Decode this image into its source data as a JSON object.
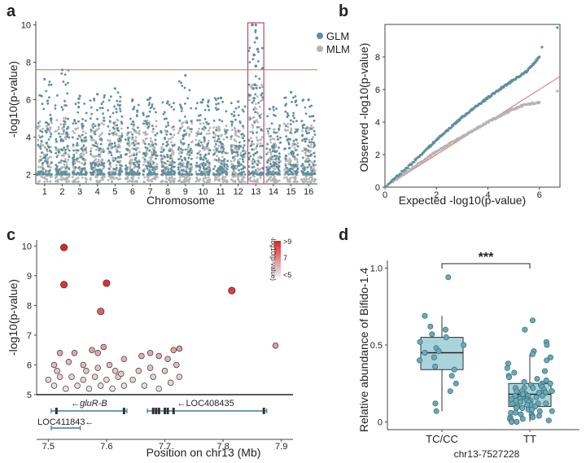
{
  "colors": {
    "glm": "#5f8f9d",
    "mlm": "#b5b5b5",
    "threshold": "#e06a6a",
    "highlight": "#c0446a",
    "box": "#8ec6d0",
    "gene": "#3d7f8f"
  },
  "panel_labels": {
    "a": "a",
    "b": "b",
    "c": "c",
    "d": "d"
  },
  "chart_data": [
    {
      "type": "scatter",
      "id": "a",
      "xlabel": "Chromosome",
      "ylabel": "-log10(p-value)",
      "categories": [
        "1",
        "2",
        "3",
        "4",
        "5",
        "6",
        "7",
        "8",
        "9",
        "10",
        "11",
        "12",
        "13",
        "14",
        "15",
        "16"
      ],
      "ylim": [
        1.5,
        10.2
      ],
      "yticks": [
        2,
        4,
        6,
        8,
        10
      ],
      "threshold": 7.6,
      "highlight_chromosome": "13",
      "legend": {
        "position": "top-right",
        "entries": [
          "GLM",
          "MLM"
        ]
      },
      "series": [
        {
          "name": "GLM",
          "peak_values": [
            7.1,
            7.6,
            6.2,
            6.3,
            6.6,
            6.0,
            6.1,
            5.9,
            7.3,
            6.0,
            6.1,
            5.9,
            10.0,
            5.6,
            6.4,
            6.0
          ]
        },
        {
          "name": "MLM",
          "peak_values": [
            5.0,
            5.2,
            4.6,
            4.8,
            5.0,
            4.7,
            4.9,
            4.6,
            5.0,
            4.8,
            4.7,
            4.6,
            6.8,
            4.6,
            4.8,
            4.7
          ]
        }
      ]
    },
    {
      "type": "scatter",
      "id": "b",
      "xlabel": "Expected -log10(p-value)",
      "ylabel": "Observed -log10(p-value)",
      "xlim": [
        0,
        6.8
      ],
      "ylim": [
        0,
        10
      ],
      "xticks": [
        0,
        2,
        4,
        6
      ],
      "yticks": [
        0,
        2,
        4,
        6,
        8
      ],
      "series": [
        {
          "name": "GLM",
          "x": [
            0,
            1,
            2,
            3,
            4,
            5,
            5.5,
            6.0,
            6.1,
            6.7
          ],
          "y": [
            0,
            1.4,
            2.9,
            4.3,
            5.5,
            6.6,
            7.1,
            8.0,
            8.6,
            9.8
          ]
        },
        {
          "name": "MLM",
          "x": [
            0,
            1,
            2,
            3,
            4,
            5,
            5.5,
            6.0,
            6.7
          ],
          "y": [
            0,
            1.1,
            2.2,
            3.1,
            4.0,
            4.8,
            5.1,
            5.2,
            5.9
          ]
        }
      ]
    },
    {
      "type": "scatter",
      "id": "c",
      "xlabel": "Position on chr13 (Mb)",
      "ylabel": "-log10(p-value)",
      "xlim": [
        7.48,
        7.92
      ],
      "ylim": [
        5,
        10.2
      ],
      "xticks": [
        7.5,
        7.6,
        7.7,
        7.8,
        7.9
      ],
      "yticks": [
        5,
        6,
        7,
        8,
        9,
        10
      ],
      "colorbar": {
        "title": "-log10(p-value)",
        "labels": [
          ">9",
          "7",
          "<5"
        ]
      },
      "points": [
        {
          "x": 7.527,
          "y": 9.95
        },
        {
          "x": 7.527,
          "y": 8.7
        },
        {
          "x": 7.6,
          "y": 8.75
        },
        {
          "x": 7.59,
          "y": 7.8
        },
        {
          "x": 7.815,
          "y": 8.5
        },
        {
          "x": 7.89,
          "y": 6.65
        },
        {
          "x": 7.51,
          "y": 6.0
        },
        {
          "x": 7.52,
          "y": 6.4
        },
        {
          "x": 7.535,
          "y": 6.1
        },
        {
          "x": 7.545,
          "y": 6.4
        },
        {
          "x": 7.56,
          "y": 6.0
        },
        {
          "x": 7.575,
          "y": 6.5
        },
        {
          "x": 7.585,
          "y": 6.4
        },
        {
          "x": 7.595,
          "y": 6.6
        },
        {
          "x": 7.605,
          "y": 6.0
        },
        {
          "x": 7.615,
          "y": 5.8
        },
        {
          "x": 7.63,
          "y": 6.2
        },
        {
          "x": 7.66,
          "y": 6.3
        },
        {
          "x": 7.675,
          "y": 6.4
        },
        {
          "x": 7.69,
          "y": 6.3
        },
        {
          "x": 7.705,
          "y": 6.2
        },
        {
          "x": 7.715,
          "y": 6.5
        },
        {
          "x": 7.725,
          "y": 6.55
        },
        {
          "x": 7.72,
          "y": 6.0
        },
        {
          "x": 7.5,
          "y": 5.5
        },
        {
          "x": 7.51,
          "y": 5.3
        },
        {
          "x": 7.52,
          "y": 5.6
        },
        {
          "x": 7.53,
          "y": 5.2
        },
        {
          "x": 7.54,
          "y": 5.6
        },
        {
          "x": 7.55,
          "y": 5.3
        },
        {
          "x": 7.56,
          "y": 5.5
        },
        {
          "x": 7.57,
          "y": 5.2
        },
        {
          "x": 7.58,
          "y": 5.6
        },
        {
          "x": 7.59,
          "y": 5.3
        },
        {
          "x": 7.6,
          "y": 5.5
        },
        {
          "x": 7.61,
          "y": 5.2
        },
        {
          "x": 7.62,
          "y": 5.6
        },
        {
          "x": 7.63,
          "y": 5.3
        },
        {
          "x": 7.645,
          "y": 5.5
        },
        {
          "x": 7.655,
          "y": 5.8
        },
        {
          "x": 7.665,
          "y": 5.3
        },
        {
          "x": 7.68,
          "y": 5.6
        },
        {
          "x": 7.69,
          "y": 5.2
        },
        {
          "x": 7.7,
          "y": 5.8
        },
        {
          "x": 7.71,
          "y": 5.4
        },
        {
          "x": 7.725,
          "y": 5.6
        },
        {
          "x": 7.515,
          "y": 5.8
        },
        {
          "x": 7.565,
          "y": 5.8
        },
        {
          "x": 7.585,
          "y": 5.9
        },
        {
          "x": 7.625,
          "y": 5.7
        },
        {
          "x": 7.675,
          "y": 5.9
        }
      ],
      "genes": [
        {
          "name": "gluR-B",
          "start": 7.505,
          "end": 7.635,
          "strand": "-"
        },
        {
          "name": "LOC408435",
          "start": 7.67,
          "end": 7.875,
          "strand": "-"
        },
        {
          "name": "LOC411843",
          "start": 7.505,
          "end": 7.555,
          "strand": "-"
        }
      ]
    },
    {
      "type": "box",
      "id": "d",
      "xlabel": "chr13-7527228",
      "ylabel": "Relative abundance of Bifido-1.4",
      "categories": [
        "TC/CC",
        "TT"
      ],
      "ylim": [
        -0.05,
        1.05
      ],
      "yticks": [
        0,
        0.5,
        1.0
      ],
      "significance": "***",
      "boxes": [
        {
          "category": "TC/CC",
          "min": 0.07,
          "q1": 0.34,
          "median": 0.45,
          "q3": 0.55,
          "max": 0.69
        },
        {
          "category": "TT",
          "min": 0.0,
          "q1": 0.1,
          "median": 0.18,
          "q3": 0.25,
          "max": 0.44
        }
      ],
      "points": [
        {
          "category": "TC/CC",
          "values": [
            0.94,
            0.69,
            0.62,
            0.6,
            0.57,
            0.55,
            0.52,
            0.5,
            0.48,
            0.46,
            0.45,
            0.42,
            0.4,
            0.36,
            0.34,
            0.3,
            0.25,
            0.2,
            0.12,
            0.07
          ]
        },
        {
          "category": "TT",
          "values": [
            0.66,
            0.6,
            0.52,
            0.5,
            0.46,
            0.44,
            0.42,
            0.4,
            0.38,
            0.35,
            0.33,
            0.32,
            0.3,
            0.29,
            0.28,
            0.27,
            0.26,
            0.25,
            0.25,
            0.24,
            0.23,
            0.22,
            0.22,
            0.21,
            0.2,
            0.2,
            0.19,
            0.19,
            0.18,
            0.18,
            0.17,
            0.17,
            0.16,
            0.16,
            0.15,
            0.15,
            0.14,
            0.14,
            0.13,
            0.13,
            0.12,
            0.12,
            0.11,
            0.11,
            0.1,
            0.1,
            0.09,
            0.09,
            0.08,
            0.08,
            0.07,
            0.07,
            0.06,
            0.06,
            0.05,
            0.05,
            0.04,
            0.04,
            0.03,
            0.03,
            0.02,
            0.02,
            0.01,
            0.01,
            0.0,
            0.0,
            0.2,
            0.18,
            0.16,
            0.14,
            0.12,
            0.24,
            0.22,
            0.19,
            0.17,
            0.15
          ]
        }
      ]
    }
  ]
}
